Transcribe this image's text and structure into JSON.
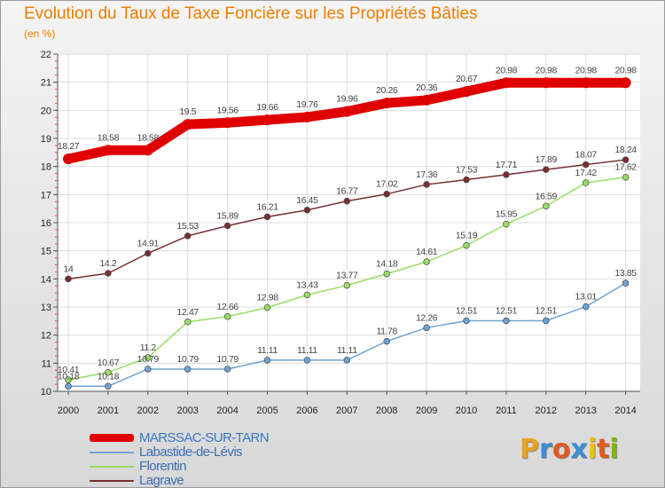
{
  "header": {
    "title": "Evolution du Taux de Taxe Foncière sur les Propriétés Bâties",
    "subtitle": "(en %)"
  },
  "brand": {
    "letters": [
      "P",
      "r",
      "o",
      "x",
      "i",
      "t",
      "i"
    ],
    "colors": [
      "#e8a020",
      "#3a8fd0",
      "#e05a20",
      "#3a8fd0",
      "#f2c000",
      "#e05a20",
      "#7ab800"
    ]
  },
  "chart_data": {
    "type": "line",
    "title": "Evolution du Taux de Taxe Foncière sur les Propriétés Bâties",
    "ylabel": "(en %)",
    "xlabel": "",
    "x": [
      "2000",
      "2001",
      "2002",
      "2003",
      "2004",
      "2005",
      "2006",
      "2007",
      "2008",
      "2009",
      "2010",
      "2011",
      "2012",
      "2013",
      "2014"
    ],
    "ylim": [
      10,
      22
    ],
    "yticks": [
      "10",
      "11",
      "12",
      "13",
      "14",
      "15",
      "16",
      "17",
      "18",
      "19",
      "20",
      "21",
      "22"
    ],
    "grid": true,
    "legend": "bottom-left",
    "series": [
      {
        "name": "MARSSAC-SUR-TARN",
        "color": "#e00000",
        "values": [
          18.27,
          18.58,
          18.58,
          19.5,
          19.56,
          19.66,
          19.76,
          19.96,
          20.26,
          20.36,
          20.67,
          20.98,
          20.98,
          20.98,
          20.98
        ],
        "labels": [
          "18.27",
          "18.58",
          "18.58",
          "19.5",
          "19.56",
          "19.66",
          "19.76",
          "19.96",
          "20.26",
          "20.36",
          "20.67",
          "20.98",
          "20.98",
          "20.98",
          "20.98"
        ]
      },
      {
        "name": "Labastide-de-Lévis",
        "color": "#6fa3d3",
        "values": [
          10.18,
          10.18,
          10.79,
          10.79,
          10.79,
          11.11,
          11.11,
          11.11,
          11.78,
          12.26,
          12.51,
          12.51,
          12.51,
          13.01,
          13.85
        ],
        "labels": [
          "10.18",
          "10.18",
          "10.79",
          "10.79",
          "10.79",
          "11.11",
          "11.11",
          "11.11",
          "11.78",
          "12.26",
          "12.51",
          "12.51",
          "12.51",
          "13.01",
          "13.85"
        ]
      },
      {
        "name": "Florentin",
        "color": "#99dd66",
        "values": [
          10.41,
          10.67,
          11.2,
          12.47,
          12.66,
          12.98,
          13.43,
          13.77,
          14.18,
          14.61,
          15.19,
          15.95,
          16.59,
          17.42,
          17.62
        ],
        "labels": [
          "10.41",
          "10.67",
          "11.2",
          "12.47",
          "12.66",
          "12.98",
          "13.43",
          "13.77",
          "14.18",
          "14.61",
          "15.19",
          "15.95",
          "16.59",
          "17.42",
          "17.62"
        ]
      },
      {
        "name": "Lagrave",
        "color": "#7a2f2f",
        "values": [
          14,
          14.2,
          14.91,
          15.53,
          15.89,
          16.21,
          16.45,
          16.77,
          17.02,
          17.36,
          17.53,
          17.71,
          17.89,
          18.07,
          18.24
        ],
        "labels": [
          "14",
          "14.2",
          "14.91",
          "15.53",
          "15.89",
          "16.21",
          "16.45",
          "16.77",
          "17.02",
          "17.36",
          "17.53",
          "17.71",
          "17.89",
          "18.07",
          "18.24"
        ]
      }
    ]
  }
}
